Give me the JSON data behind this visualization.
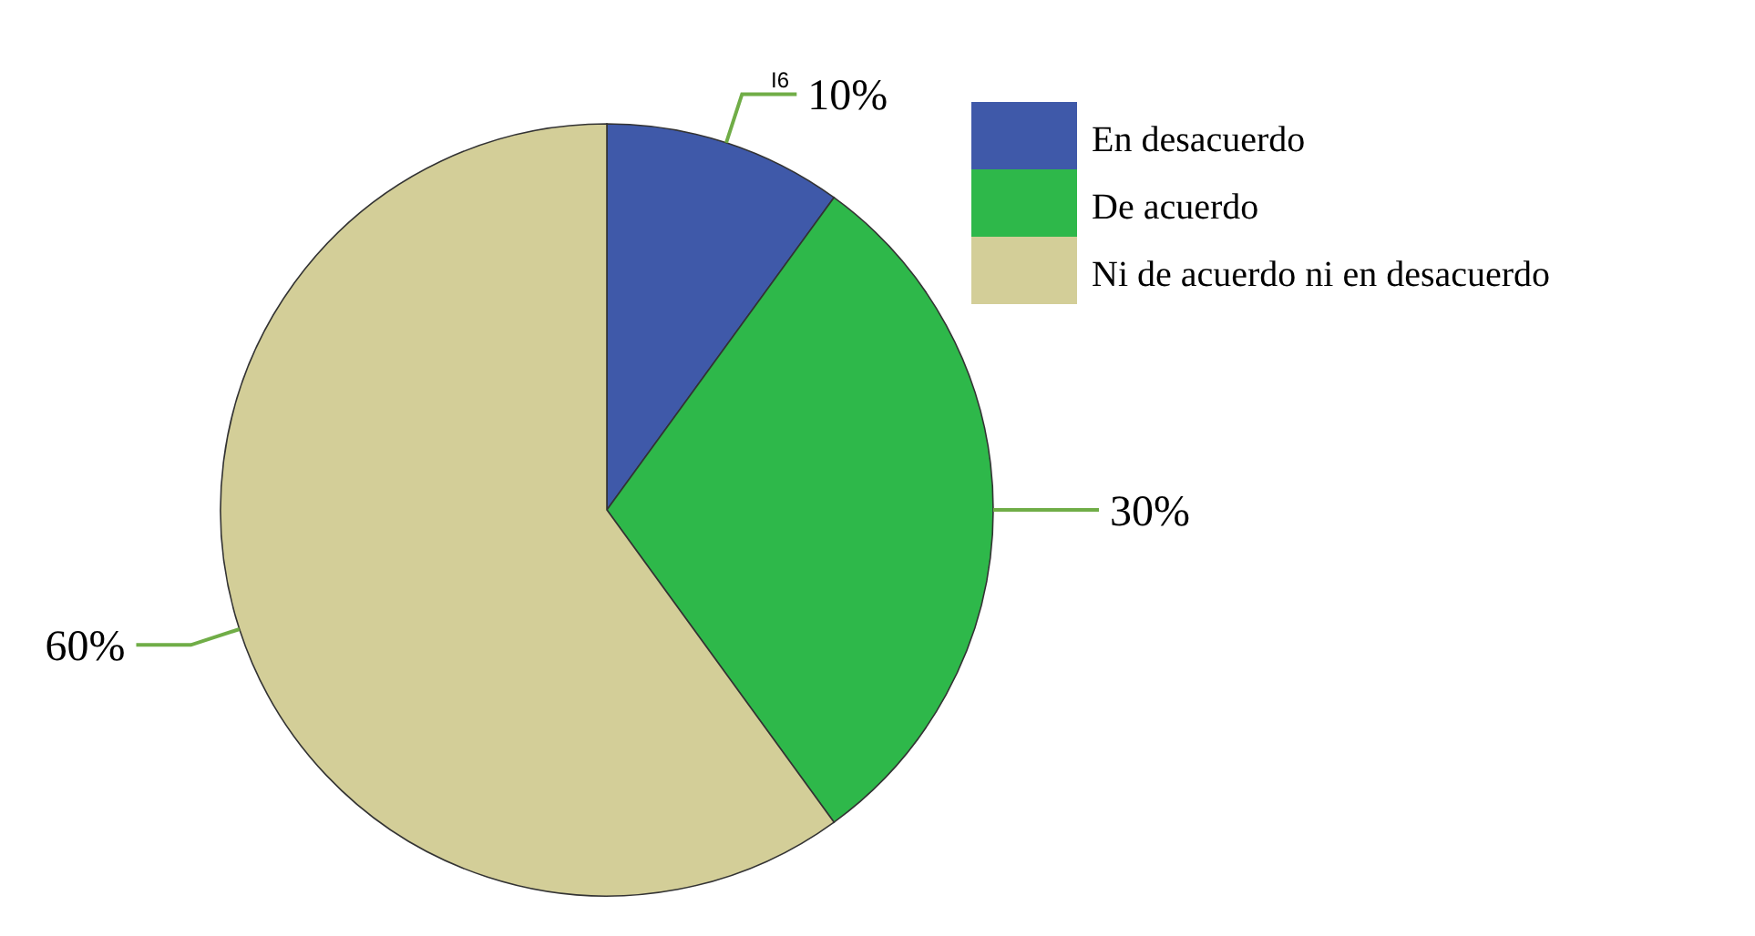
{
  "chart_data": {
    "type": "pie",
    "categories": [
      "En desacuerdo",
      "De acuerdo",
      "Ni de acuerdo ni en desacuerdo"
    ],
    "values": [
      10,
      30,
      60
    ],
    "colors": [
      "#3f59a9",
      "#2eb84a",
      "#d3ce98"
    ],
    "value_labels": [
      "10%",
      "30%",
      "60%"
    ],
    "annotations": [
      "I6"
    ],
    "legend": "top right"
  }
}
